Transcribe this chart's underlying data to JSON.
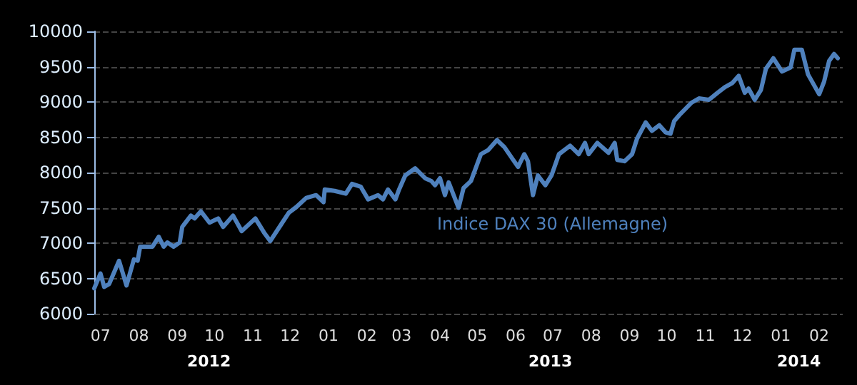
{
  "chart_data": {
    "type": "line",
    "annotations": [
      "Indice DAX 30 (Allemagne)",
      "2012",
      "2013",
      "2014"
    ],
    "x": [
      "2012-06-26",
      "2012-07-01",
      "2012-07-04",
      "2012-07-08",
      "2012-07-16",
      "2012-07-22",
      "2012-07-28",
      "2012-07-31",
      "2012-08-02",
      "2012-08-12",
      "2012-08-17",
      "2012-08-21",
      "2012-08-24",
      "2012-08-29",
      "2012-09-03",
      "2012-09-05",
      "2012-09-12",
      "2012-09-15",
      "2012-09-20",
      "2012-09-27",
      "2012-10-04",
      "2012-10-08",
      "2012-10-16",
      "2012-10-23",
      "2012-11-03",
      "2012-11-10",
      "2012-11-15",
      "2012-11-24",
      "2012-11-30",
      "2012-12-06",
      "2012-12-14",
      "2012-12-22",
      "2012-12-28",
      "2012-12-29",
      "2013-01-06",
      "2013-01-15",
      "2013-01-20",
      "2013-01-27",
      "2013-02-02",
      "2013-02-10",
      "2013-02-14",
      "2013-02-18",
      "2013-02-24",
      "2013-02-27",
      "2013-03-04",
      "2013-03-12",
      "2013-03-20",
      "2013-03-25",
      "2013-03-28",
      "2013-04-01",
      "2013-04-05",
      "2013-04-08",
      "2013-04-16",
      "2013-04-20",
      "2013-04-26",
      "2013-05-04",
      "2013-05-10",
      "2013-05-17",
      "2013-05-23",
      "2013-05-30",
      "2013-06-03",
      "2013-06-08",
      "2013-06-11",
      "2013-06-15",
      "2013-06-19",
      "2013-06-25",
      "2013-06-30",
      "2013-07-06",
      "2013-07-15",
      "2013-07-22",
      "2013-07-27",
      "2013-07-30",
      "2013-08-06",
      "2013-08-15",
      "2013-08-20",
      "2013-08-22",
      "2013-08-28",
      "2013-09-03",
      "2013-09-07",
      "2013-09-14",
      "2013-09-19",
      "2013-09-25",
      "2013-09-30",
      "2013-10-04",
      "2013-10-07",
      "2013-10-12",
      "2013-10-21",
      "2013-10-27",
      "2013-11-04",
      "2013-11-11",
      "2013-11-17",
      "2013-11-23",
      "2013-11-28",
      "2013-12-03",
      "2013-12-06",
      "2013-12-11",
      "2013-12-16",
      "2013-12-20",
      "2013-12-26",
      "2014-01-02",
      "2014-01-09",
      "2014-01-12",
      "2014-01-18",
      "2014-01-23",
      "2014-02-01",
      "2014-02-05",
      "2014-02-09",
      "2014-02-13",
      "2014-02-16"
    ],
    "series": [
      {
        "color": "#4f81bd",
        "values": [
          6360,
          6570,
          6380,
          6420,
          6750,
          6400,
          6770,
          6750,
          6950,
          6950,
          7090,
          6950,
          7010,
          6950,
          7010,
          7230,
          7390,
          7350,
          7450,
          7290,
          7350,
          7230,
          7390,
          7170,
          7350,
          7150,
          7030,
          7270,
          7430,
          7510,
          7640,
          7680,
          7580,
          7760,
          7740,
          7700,
          7840,
          7800,
          7620,
          7680,
          7620,
          7760,
          7620,
          7760,
          7960,
          8060,
          7920,
          7880,
          7820,
          7920,
          7680,
          7860,
          7500,
          7780,
          7880,
          8260,
          8320,
          8460,
          8360,
          8180,
          8080,
          8260,
          8160,
          7680,
          7960,
          7820,
          7960,
          8260,
          8380,
          8260,
          8420,
          8260,
          8420,
          8280,
          8420,
          8180,
          8160,
          8260,
          8480,
          8710,
          8590,
          8670,
          8570,
          8550,
          8730,
          8830,
          8990,
          9050,
          9030,
          9130,
          9210,
          9270,
          9370,
          9130,
          9190,
          9030,
          9170,
          9470,
          9620,
          9430,
          9490,
          9740,
          9740,
          9390,
          9110,
          9290,
          9580,
          9680,
          9620
        ]
      }
    ],
    "xlim": [
      "2012-06-26",
      "2014-02-20"
    ],
    "xticks": [
      {
        "value": "2012-07-01",
        "label": "07"
      },
      {
        "value": "2012-08-01",
        "label": "08"
      },
      {
        "value": "2012-09-01",
        "label": "09"
      },
      {
        "value": "2012-10-01",
        "label": "10"
      },
      {
        "value": "2012-11-01",
        "label": "11"
      },
      {
        "value": "2012-12-01",
        "label": "12"
      },
      {
        "value": "2013-01-01",
        "label": "01"
      },
      {
        "value": "2013-02-01",
        "label": "02"
      },
      {
        "value": "2013-03-01",
        "label": "03"
      },
      {
        "value": "2013-04-01",
        "label": "04"
      },
      {
        "value": "2013-05-01",
        "label": "05"
      },
      {
        "value": "2013-06-01",
        "label": "06"
      },
      {
        "value": "2013-07-01",
        "label": "07"
      },
      {
        "value": "2013-08-01",
        "label": "08"
      },
      {
        "value": "2013-09-01",
        "label": "09"
      },
      {
        "value": "2013-10-01",
        "label": "10"
      },
      {
        "value": "2013-11-01",
        "label": "11"
      },
      {
        "value": "2013-12-01",
        "label": "12"
      },
      {
        "value": "2014-01-01",
        "label": "01"
      },
      {
        "value": "2014-02-01",
        "label": "02"
      }
    ],
    "ylim": [
      6000,
      10000
    ],
    "yticks": [
      6000,
      6500,
      7000,
      7500,
      8000,
      8500,
      9000,
      9500,
      10000
    ],
    "grid": "y",
    "marker": "none",
    "line_style": "solid"
  }
}
